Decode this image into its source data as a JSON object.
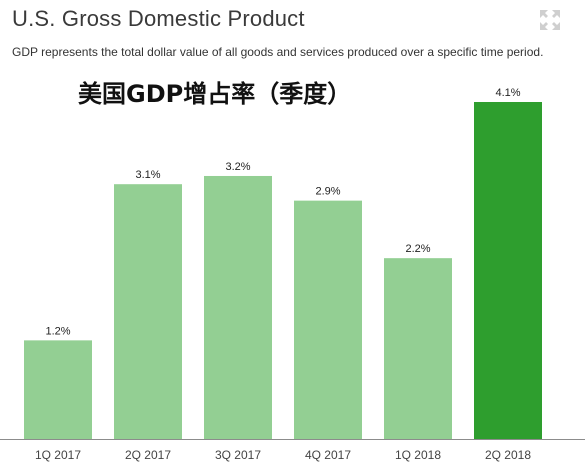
{
  "header": {
    "title": "U.S. Gross Domestic Product",
    "subtitle": "GDP represents the total dollar value of all goods and services produced over a specific time period.",
    "overlay_title": "美国GDP增占率（季度）",
    "expand_icon": "expand-arrows-icon"
  },
  "colors": {
    "bar_default": "#93cf93",
    "bar_highlight": "#2e9e2e",
    "baseline": "#8c8c8c"
  },
  "chart_data": {
    "type": "bar",
    "title": "U.S. Gross Domestic Product",
    "xlabel": "",
    "ylabel": "",
    "categories": [
      "1Q 2017",
      "2Q 2017",
      "3Q 2017",
      "4Q 2017",
      "1Q 2018",
      "2Q 2018"
    ],
    "values": [
      1.2,
      3.1,
      3.2,
      2.9,
      2.2,
      4.1
    ],
    "value_labels": [
      "1.2%",
      "3.1%",
      "3.2%",
      "2.9%",
      "2.2%",
      "4.1%"
    ],
    "highlight_index": 5,
    "ylim": [
      0,
      4.1
    ],
    "grid": false,
    "legend": "none"
  }
}
